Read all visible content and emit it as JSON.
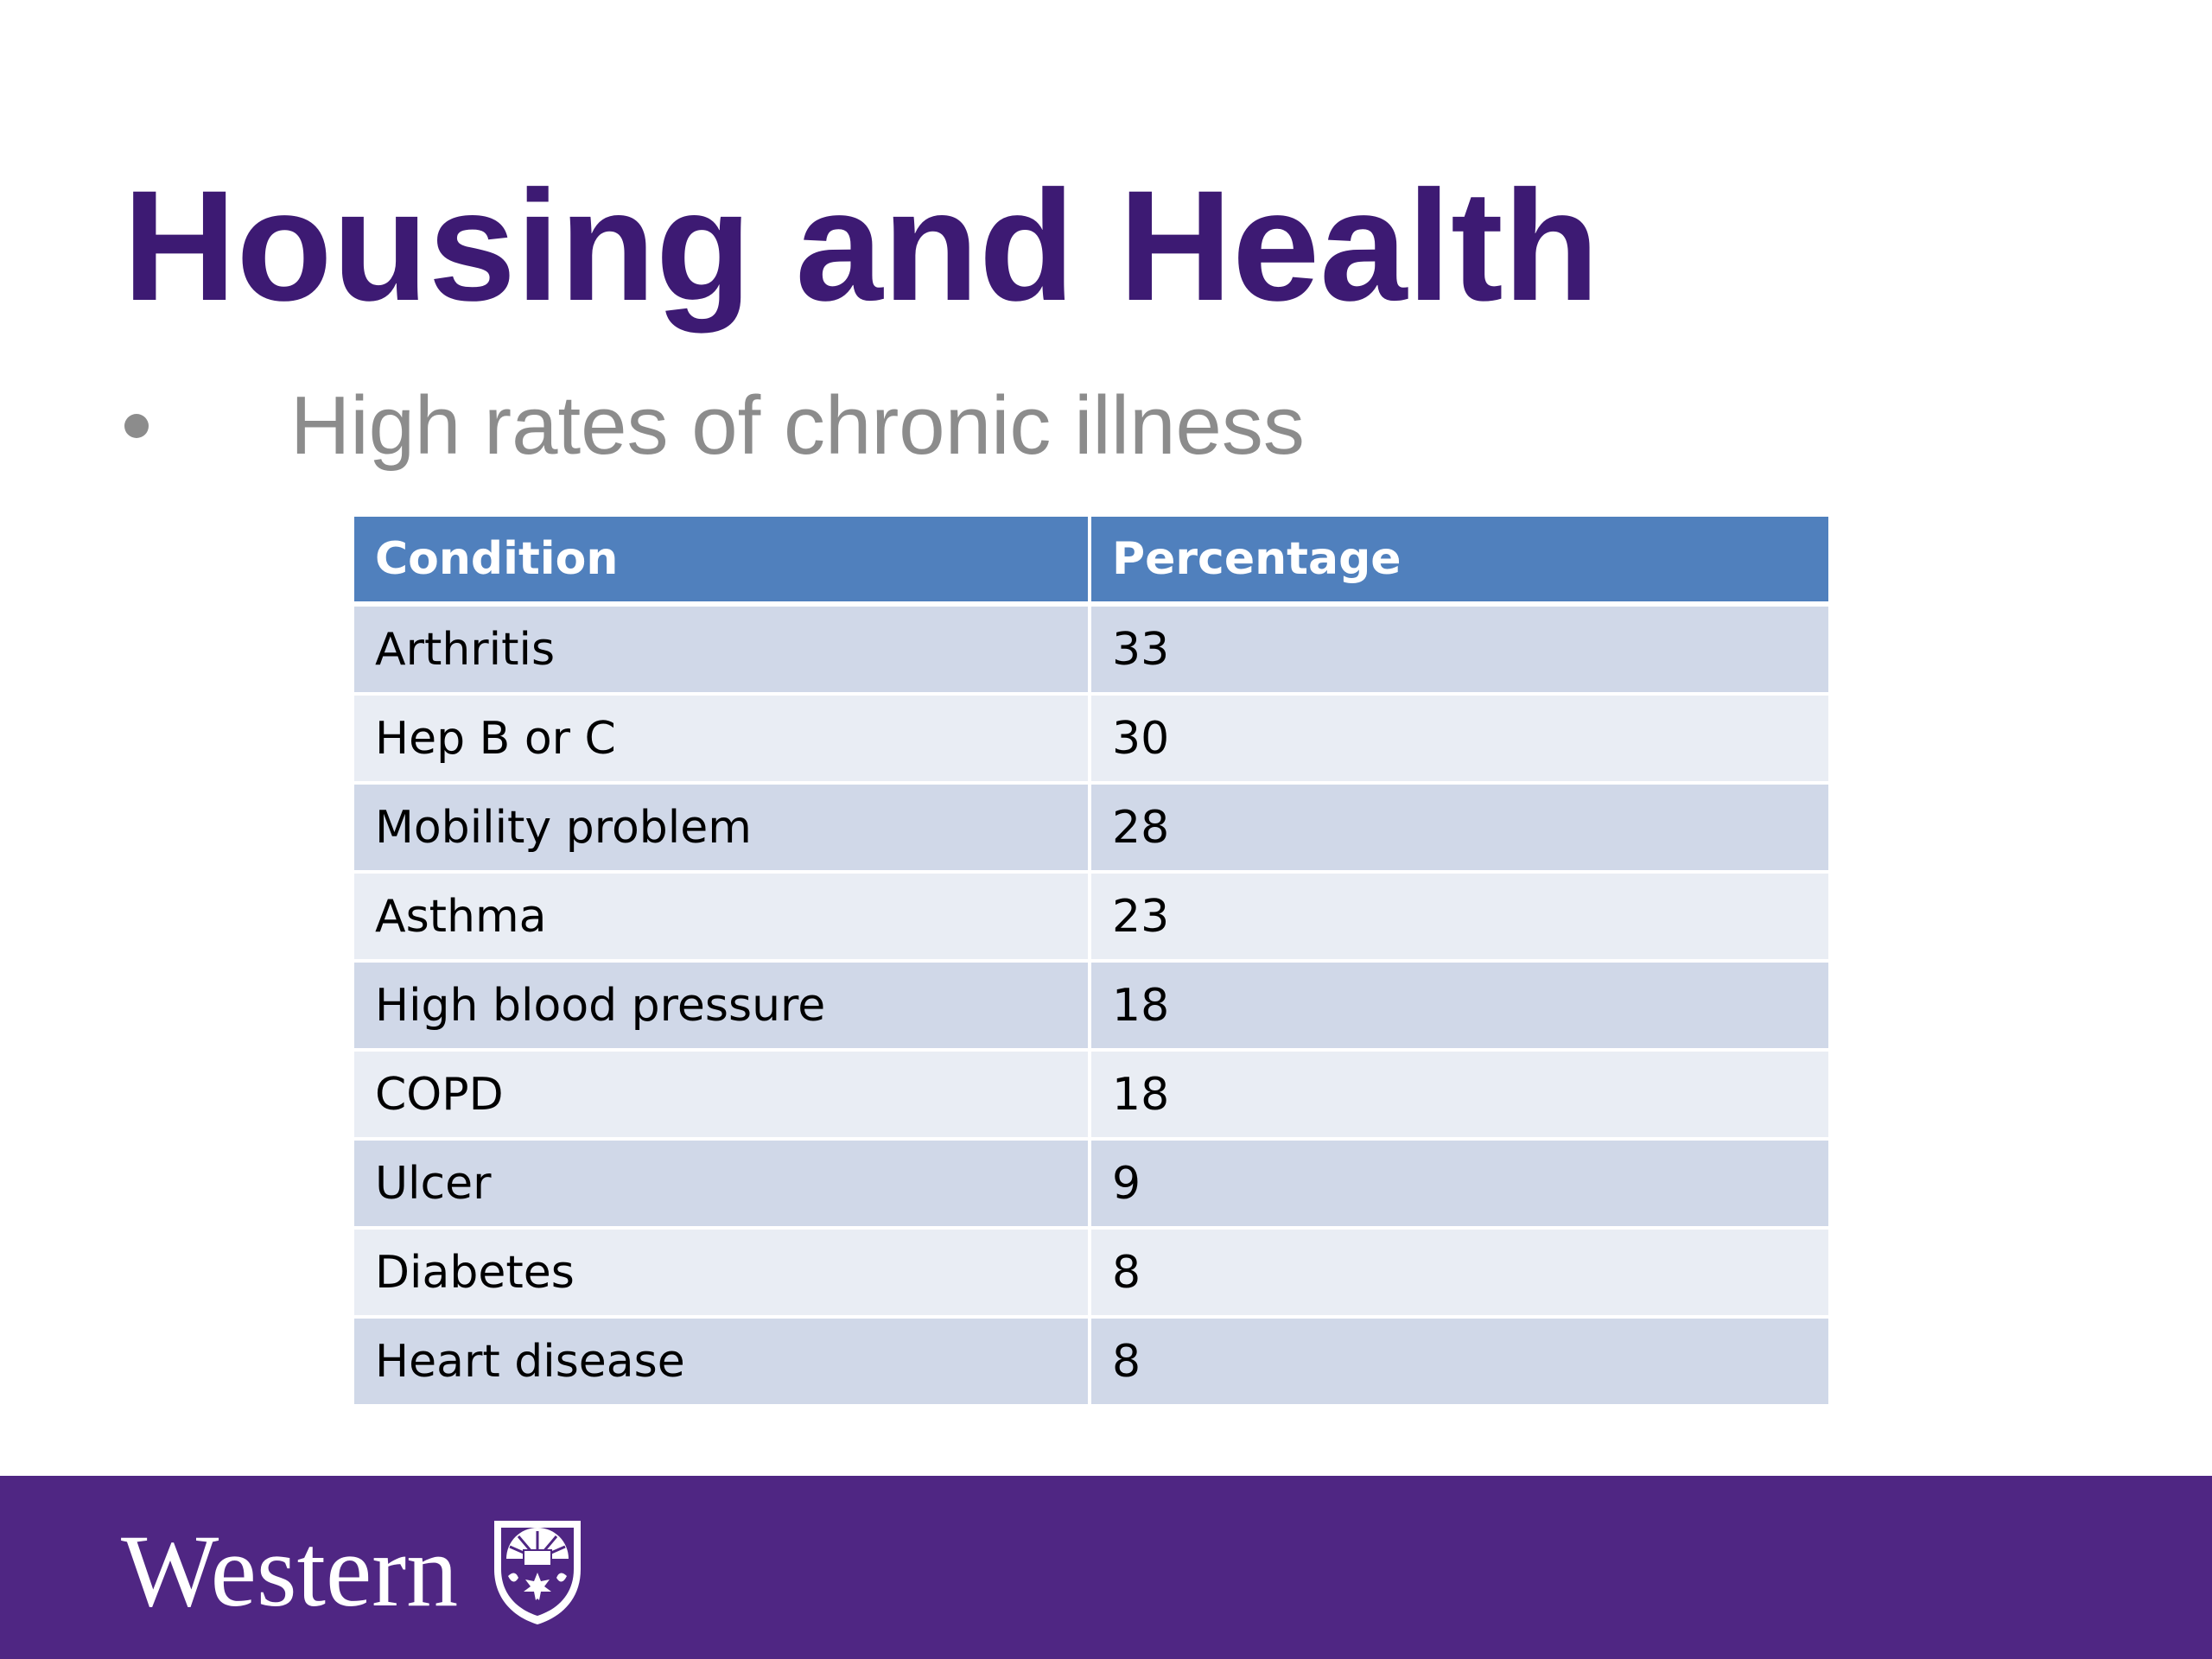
{
  "slide": {
    "title": "Housing and Health",
    "bullet": "High rates of chronic illness"
  },
  "table": {
    "headers": [
      "Condition",
      "Percentage"
    ],
    "rows": [
      {
        "condition": "Arthritis",
        "percentage": "33"
      },
      {
        "condition": "Hep B or C",
        "percentage": "30"
      },
      {
        "condition": "Mobility problem",
        "percentage": "28"
      },
      {
        "condition": "Asthma",
        "percentage": "23"
      },
      {
        "condition": "High blood pressure",
        "percentage": "18"
      },
      {
        "condition": "COPD",
        "percentage": "18"
      },
      {
        "condition": "Ulcer",
        "percentage": "9"
      },
      {
        "condition": "Diabetes",
        "percentage": "8"
      },
      {
        "condition": "Heart disease",
        "percentage": "8"
      }
    ]
  },
  "footer": {
    "logo_text": "Western",
    "crest_icon": "western-crest-icon"
  },
  "colors": {
    "title": "#3d1a73",
    "bullet": "#8c8c8c",
    "table_header": "#5080bd",
    "row_odd": "#d0d8e8",
    "row_even": "#e9edf4",
    "footer": "#4f2683"
  }
}
